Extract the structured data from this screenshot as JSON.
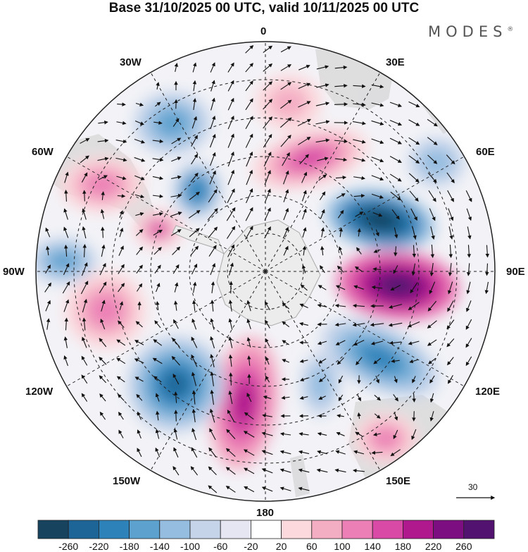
{
  "title": "Base 31/10/2025 00 UTC, valid 10/11/2025 00 UTC",
  "brand": "MODES",
  "brand_mark": "®",
  "longitude_labels": {
    "lon_0": "0",
    "lon_30e": "30E",
    "lon_60e": "60E",
    "lon_90e": "90E",
    "lon_120e": "120E",
    "lon_150e": "150E",
    "lon_180": "180",
    "lon_150w": "150W",
    "lon_120w": "120W",
    "lon_90w": "90W",
    "lon_60w": "60W",
    "lon_30w": "30W"
  },
  "reference_vector": "30",
  "colorbar": {
    "ticks": [
      "-260",
      "-220",
      "-180",
      "-140",
      "-100",
      "-60",
      "-20",
      "20",
      "60",
      "100",
      "140",
      "180",
      "220",
      "260"
    ],
    "colors": [
      "#17435f",
      "#1d6596",
      "#2e82ba",
      "#5da1cf",
      "#94bde0",
      "#c6d4ea",
      "#e5e6f1",
      "#ffffff",
      "#fbd9dd",
      "#f4aec4",
      "#ec80b6",
      "#d84aa6",
      "#b0198d",
      "#7c0e82",
      "#51136f"
    ]
  },
  "colors": {
    "land": "#dcdcdc",
    "ocean": "#ffffff",
    "arrows": "#111111"
  }
}
